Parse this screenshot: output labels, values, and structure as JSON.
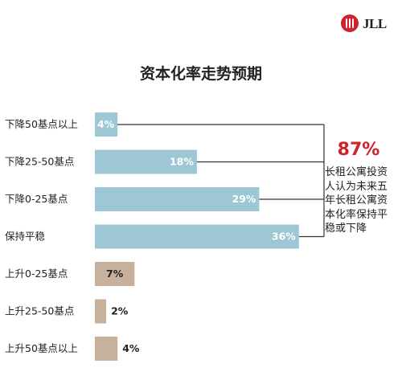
{
  "logo": {
    "text": "JLL"
  },
  "colors": {
    "decline": "#9dc7d4",
    "rise": "#c7b09c",
    "callout": "#d0222b",
    "line": "#333333"
  },
  "callout": {
    "percent": "87%",
    "text": "长租公寓投资人认为未来五年长租公寓资本化率保持平稳或下降"
  },
  "chart_data": {
    "type": "bar",
    "orientation": "horizontal",
    "title": "资本化率走势预期",
    "categories": [
      "下降50基点以上",
      "下降25-50基点",
      "下降0-25基点",
      "保持平稳",
      "上升0-25基点",
      "上升25-50基点",
      "上升50基点以上"
    ],
    "values": [
      4,
      18,
      29,
      36,
      7,
      2,
      4
    ],
    "value_labels": [
      "4%",
      "18%",
      "29%",
      "36%",
      "7%",
      "2%",
      "4%"
    ],
    "unit": "%",
    "groups": [
      "decline",
      "decline",
      "decline",
      "decline",
      "rise",
      "rise",
      "rise"
    ],
    "grid": false,
    "legend": "none"
  }
}
